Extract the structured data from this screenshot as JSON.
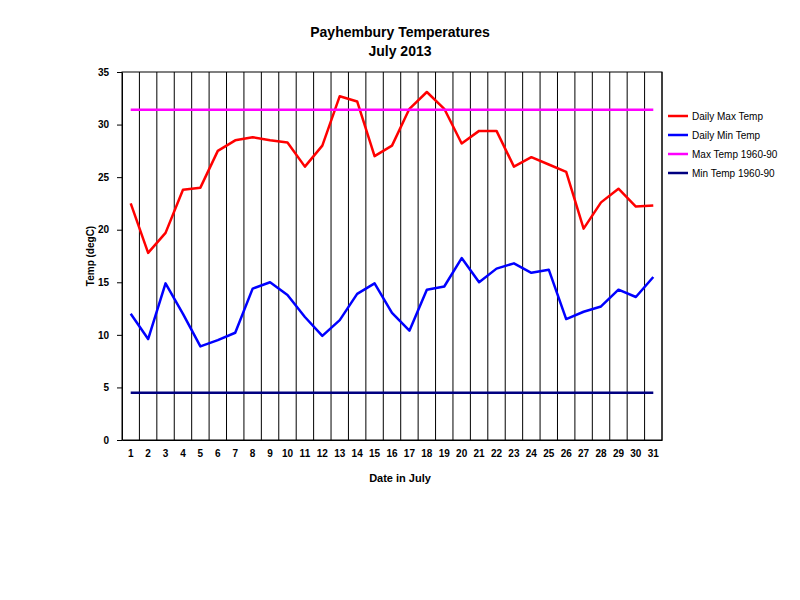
{
  "chart_data": {
    "type": "line",
    "title": "Payhembury Temperatures",
    "subtitle": "July 2013",
    "x_label": "Date in July",
    "y_label": "Temp (degC)",
    "categories": [
      "1",
      "2",
      "3",
      "4",
      "5",
      "6",
      "7",
      "8",
      "9",
      "10",
      "11",
      "12",
      "13",
      "14",
      "15",
      "16",
      "17",
      "18",
      "19",
      "20",
      "21",
      "22",
      "23",
      "24",
      "25",
      "26",
      "27",
      "28",
      "29",
      "30",
      "31"
    ],
    "ylim": [
      0,
      35
    ],
    "yticks": [
      0,
      5,
      10,
      15,
      20,
      25,
      30,
      35
    ],
    "grid": "x",
    "legend": "right",
    "series": [
      {
        "name": "Daily Max Temp",
        "color": "#ff0000",
        "line_style": "solid",
        "values": [
          22.5,
          17.8,
          19.7,
          23.8,
          24.0,
          27.5,
          28.5,
          28.8,
          28.5,
          28.3,
          26.0,
          28.0,
          32.7,
          32.2,
          27.0,
          28.0,
          31.5,
          33.1,
          31.5,
          28.2,
          29.4,
          29.4,
          26.0,
          26.9,
          26.2,
          25.5,
          20.1,
          22.6,
          23.9,
          22.2,
          22.3
        ]
      },
      {
        "name": "Daily Min Temp",
        "color": "#0000ff",
        "line_style": "solid",
        "values": [
          12.0,
          9.6,
          14.9,
          12.0,
          8.9,
          9.5,
          10.2,
          14.4,
          15.0,
          13.8,
          11.7,
          9.9,
          11.4,
          13.9,
          14.9,
          12.1,
          10.4,
          14.3,
          14.6,
          17.3,
          15.0,
          16.3,
          16.8,
          15.9,
          16.2,
          11.5,
          12.2,
          12.7,
          14.3,
          13.6,
          15.5
        ]
      },
      {
        "name": "Max Temp 1960-90",
        "color": "#ff00ff",
        "line_style": "solid",
        "values": [
          31.4,
          31.4,
          31.4,
          31.4,
          31.4,
          31.4,
          31.4,
          31.4,
          31.4,
          31.4,
          31.4,
          31.4,
          31.4,
          31.4,
          31.4,
          31.4,
          31.4,
          31.4,
          31.4,
          31.4,
          31.4,
          31.4,
          31.4,
          31.4,
          31.4,
          31.4,
          31.4,
          31.4,
          31.4,
          31.4,
          31.4
        ]
      },
      {
        "name": "Min Temp 1960-90",
        "color": "#000080",
        "line_style": "solid",
        "values": [
          4.5,
          4.5,
          4.5,
          4.5,
          4.5,
          4.5,
          4.5,
          4.5,
          4.5,
          4.5,
          4.5,
          4.5,
          4.5,
          4.5,
          4.5,
          4.5,
          4.5,
          4.5,
          4.5,
          4.5,
          4.5,
          4.5,
          4.5,
          4.5,
          4.5,
          4.5,
          4.5,
          4.5,
          4.5,
          4.5,
          4.5
        ]
      }
    ]
  }
}
